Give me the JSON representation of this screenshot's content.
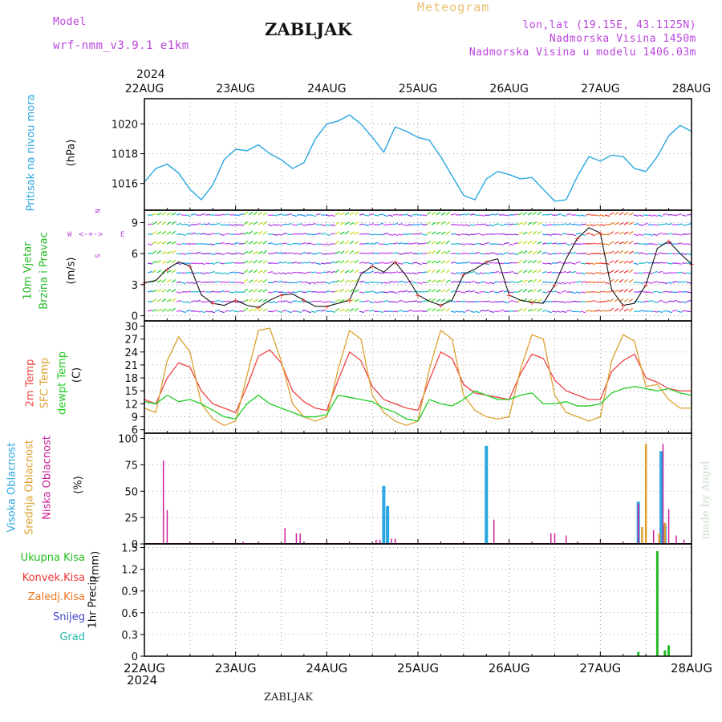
{
  "header": {
    "model_label": "Model",
    "model_name": "wrf-nmm_v3.9.1 e1km",
    "station": "ZABLJAK",
    "meteogram": "Meteogram",
    "lonlat": "lon,lat (19.15E, 43.1125N)",
    "elevation": "Nadmorska Visina 1450m",
    "model_elevation": "Nadmorska Visina u modelu 1406.03m",
    "year": "2024",
    "footer_station": "ZABLJAK",
    "credit": "made by Angel"
  },
  "colors": {
    "pressure": "#2aa6e0",
    "wind_label": "#22bb22",
    "temp_2m": "#ee4444",
    "temp_sfc": "#dda030",
    "dewpoint": "#22cc22",
    "cloud_high": "#2aa6e0",
    "cloud_mid": "#dda030",
    "cloud_low": "#cc2299",
    "precip_total": "#22bb22",
    "precip_conv": "#ee3333",
    "precip_freezing": "#ee7722",
    "precip_snow": "#4444cc",
    "precip_hail": "#22bbaa",
    "compass": "#bb44dd"
  },
  "chart_data": [
    {
      "type": "line",
      "panel": "pressure",
      "ylabel": "Pritisak na nivou mora",
      "unit": "(hPa)",
      "ylim": [
        1014.2,
        1021.7
      ],
      "yticks": [
        1016,
        1018,
        1020
      ],
      "x": [
        0,
        3,
        6,
        9,
        12,
        15,
        18,
        21,
        24,
        27,
        30,
        33,
        36,
        39,
        42,
        45,
        48,
        51,
        54,
        57,
        60,
        63,
        66,
        69,
        72,
        75,
        78,
        81,
        84,
        87,
        90,
        93,
        96,
        99,
        102,
        105,
        108,
        111,
        114,
        117,
        120,
        123,
        126,
        129,
        132,
        135,
        138,
        141,
        144
      ],
      "values": [
        1016.1,
        1017.0,
        1017.3,
        1016.7,
        1015.6,
        1014.9,
        1015.9,
        1017.6,
        1018.3,
        1018.2,
        1018.6,
        1018.0,
        1017.6,
        1017.0,
        1017.4,
        1019.0,
        1020.0,
        1020.2,
        1020.6,
        1020.0,
        1019.1,
        1018.1,
        1019.8,
        1019.5,
        1019.1,
        1018.9,
        1017.8,
        1016.5,
        1015.2,
        1014.9,
        1016.3,
        1016.8,
        1016.6,
        1016.3,
        1016.4,
        1015.6,
        1014.8,
        1014.9,
        1016.5,
        1017.8,
        1017.5,
        1017.9,
        1017.8,
        1017.0,
        1016.8,
        1017.8,
        1019.2,
        1019.9,
        1019.5
      ]
    },
    {
      "type": "line",
      "panel": "wind",
      "ylabel_1": "10m Vjetar",
      "ylabel_2": "Brzina i Pravac",
      "unit": "(m/s)",
      "compass": {
        "n": "N",
        "s": "S",
        "e": "E",
        "w": "W"
      },
      "ylim": [
        -0.5,
        10.2
      ],
      "yticks": [
        0,
        3,
        6,
        9
      ],
      "x": [
        0,
        3,
        6,
        9,
        12,
        15,
        18,
        21,
        24,
        27,
        30,
        33,
        36,
        39,
        42,
        45,
        48,
        51,
        54,
        57,
        60,
        63,
        66,
        69,
        72,
        75,
        78,
        81,
        84,
        87,
        90,
        93,
        96,
        99,
        102,
        105,
        108,
        111,
        114,
        117,
        120,
        123,
        126,
        129,
        132,
        135,
        138,
        141,
        144
      ],
      "values": [
        3.2,
        3.4,
        4.5,
        5.2,
        4.8,
        2.0,
        1.2,
        1.0,
        1.5,
        1.0,
        0.8,
        1.5,
        2.0,
        2.1,
        1.5,
        0.9,
        0.9,
        1.2,
        1.5,
        4.0,
        4.8,
        4.2,
        5.2,
        3.8,
        2.0,
        1.4,
        1.0,
        1.5,
        4.0,
        4.5,
        5.2,
        5.5,
        2.0,
        1.5,
        1.3,
        1.2,
        3.0,
        5.5,
        7.5,
        8.5,
        8.0,
        2.5,
        1.0,
        1.2,
        3.0,
        6.5,
        7.2,
        6.0,
        5.0
      ]
    },
    {
      "type": "line",
      "panel": "temperature",
      "ylabel_1": "2m Temp",
      "ylabel_2": "SFC Temp",
      "ylabel_3": "dewpt Temp",
      "unit": "(C)",
      "ylim": [
        5.2,
        31.2
      ],
      "yticks": [
        6,
        9,
        12,
        15,
        18,
        21,
        24,
        27,
        30
      ],
      "x": [
        0,
        3,
        6,
        9,
        12,
        15,
        18,
        21,
        24,
        27,
        30,
        33,
        36,
        39,
        42,
        45,
        48,
        51,
        54,
        57,
        60,
        63,
        66,
        69,
        72,
        75,
        78,
        81,
        84,
        87,
        90,
        93,
        96,
        99,
        102,
        105,
        108,
        111,
        114,
        117,
        120,
        123,
        126,
        129,
        132,
        135,
        138,
        141,
        144
      ],
      "series": [
        {
          "key": "t2m",
          "values": [
            13.0,
            12.0,
            18.0,
            21.5,
            20.5,
            15.0,
            12.0,
            11.0,
            10.0,
            16.0,
            23.0,
            24.5,
            21.5,
            15.0,
            12.5,
            11.0,
            10.5,
            17.5,
            24.0,
            22.0,
            16.0,
            13.0,
            12.0,
            11.0,
            10.5,
            17.5,
            24.0,
            22.5,
            16.5,
            14.5,
            14.0,
            13.5,
            13.0,
            19.0,
            23.5,
            22.5,
            17.5,
            15.0,
            14.0,
            13.0,
            13.0,
            19.5,
            22.0,
            23.5,
            18.0,
            17.0,
            15.5,
            15.0,
            15.0
          ]
        },
        {
          "key": "tsfc",
          "values": [
            11.0,
            10.0,
            22.0,
            27.5,
            24.0,
            12.0,
            8.5,
            7.0,
            8.0,
            18.5,
            29.0,
            29.5,
            22.0,
            12.0,
            9.0,
            8.0,
            9.0,
            20.0,
            29.0,
            27.0,
            14.0,
            10.0,
            8.0,
            7.0,
            8.0,
            20.0,
            29.0,
            27.0,
            14.0,
            10.5,
            9.0,
            8.5,
            9.0,
            20.0,
            28.0,
            27.0,
            14.0,
            10.0,
            9.0,
            8.0,
            9.0,
            22.0,
            28.0,
            26.5,
            16.0,
            16.5,
            13.0,
            11.0,
            11.0
          ]
        },
        {
          "key": "dewpt",
          "values": [
            12.5,
            12.0,
            14.0,
            12.5,
            13.0,
            12.0,
            10.5,
            9.0,
            8.5,
            12.0,
            14.0,
            12.0,
            11.0,
            10.0,
            9.0,
            9.0,
            9.5,
            14.0,
            13.5,
            13.0,
            12.5,
            11.0,
            10.0,
            8.5,
            8.0,
            13.0,
            12.0,
            11.5,
            13.0,
            15.0,
            14.0,
            13.0,
            13.0,
            14.0,
            14.5,
            12.0,
            12.0,
            12.5,
            11.5,
            11.5,
            12.0,
            14.5,
            15.5,
            16.0,
            15.5,
            15.0,
            15.5,
            14.5,
            14.0
          ]
        }
      ]
    },
    {
      "type": "bar",
      "panel": "clouds",
      "ylabel_1": "Visoka Oblacnost",
      "ylabel_2": "Srednja Oblacnost",
      "ylabel_3": "Niska Oblacnost",
      "unit": "(%)",
      "ylim": [
        0,
        105
      ],
      "yticks": [
        0,
        25,
        50,
        75,
        100
      ],
      "series": [
        {
          "key": "high",
          "x": [
            63,
            64,
            90,
            130,
            136,
            137
          ],
          "values": [
            55,
            36,
            93,
            40,
            88,
            18
          ]
        },
        {
          "key": "mid",
          "x": [
            131,
            132,
            135.5,
            137
          ],
          "values": [
            16,
            95,
            10,
            20
          ]
        },
        {
          "key": "low",
          "x": [
            5,
            6,
            26,
            37,
            40,
            41,
            61,
            62,
            65,
            66,
            92,
            107,
            108,
            111,
            130,
            134,
            136.5,
            138,
            140,
            142
          ],
          "values": [
            79,
            32,
            2,
            15,
            10,
            10,
            4,
            4,
            5,
            5,
            23,
            10,
            10,
            8,
            38,
            13,
            95,
            33,
            8,
            4
          ]
        }
      ]
    },
    {
      "type": "bar",
      "panel": "precip",
      "ylabel_1": "1hr Precip",
      "unit": "(mm)",
      "legend": [
        "Ukupna Kisa",
        "Konvek.Kisa",
        "Zaledj.Kisa",
        "Snijeg",
        "Grad"
      ],
      "ylim": [
        0,
        1.55
      ],
      "yticks": [
        0,
        0.3,
        0.6,
        0.9,
        1.2,
        1.5
      ],
      "ytick_labels": [
        "0",
        "0.3",
        "0.6",
        "0.9",
        "1.2",
        "1.5"
      ],
      "x": [
        130,
        135,
        137,
        138
      ],
      "values": [
        0.06,
        1.45,
        0.08,
        0.15
      ]
    }
  ],
  "time_axis": {
    "start_hour": 0,
    "end_hour": 144,
    "labels": [
      "22AUG",
      "23AUG",
      "24AUG",
      "25AUG",
      "26AUG",
      "27AUG",
      "28AUG"
    ]
  }
}
